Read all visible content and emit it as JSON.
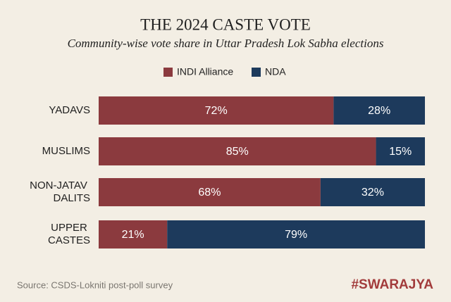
{
  "chart_data": {
    "type": "stacked_barh",
    "title": "THE 2024 CASTE VOTE",
    "subtitle": "Community-wise vote share in Uttar Pradesh Lok Sabha elections",
    "categories": [
      "YADAVS",
      "MUSLIMS",
      "NON-JATAV DALITS",
      "UPPER CASTES"
    ],
    "series": [
      {
        "name": "INDI Alliance",
        "color": "#8b3a3e",
        "values": [
          72,
          85,
          68,
          21
        ],
        "value_labels": [
          "72%",
          "85%",
          "68%",
          "21%"
        ]
      },
      {
        "name": "NDA",
        "color": "#1d3a5c",
        "values": [
          28,
          15,
          32,
          79
        ],
        "value_labels": [
          "28%",
          "15%",
          "32%",
          "79%"
        ]
      }
    ],
    "xlim": [
      0,
      100
    ],
    "source": "Source: CSDS-Lokniti post-poll survey",
    "brand": "#SWARAJYA"
  }
}
